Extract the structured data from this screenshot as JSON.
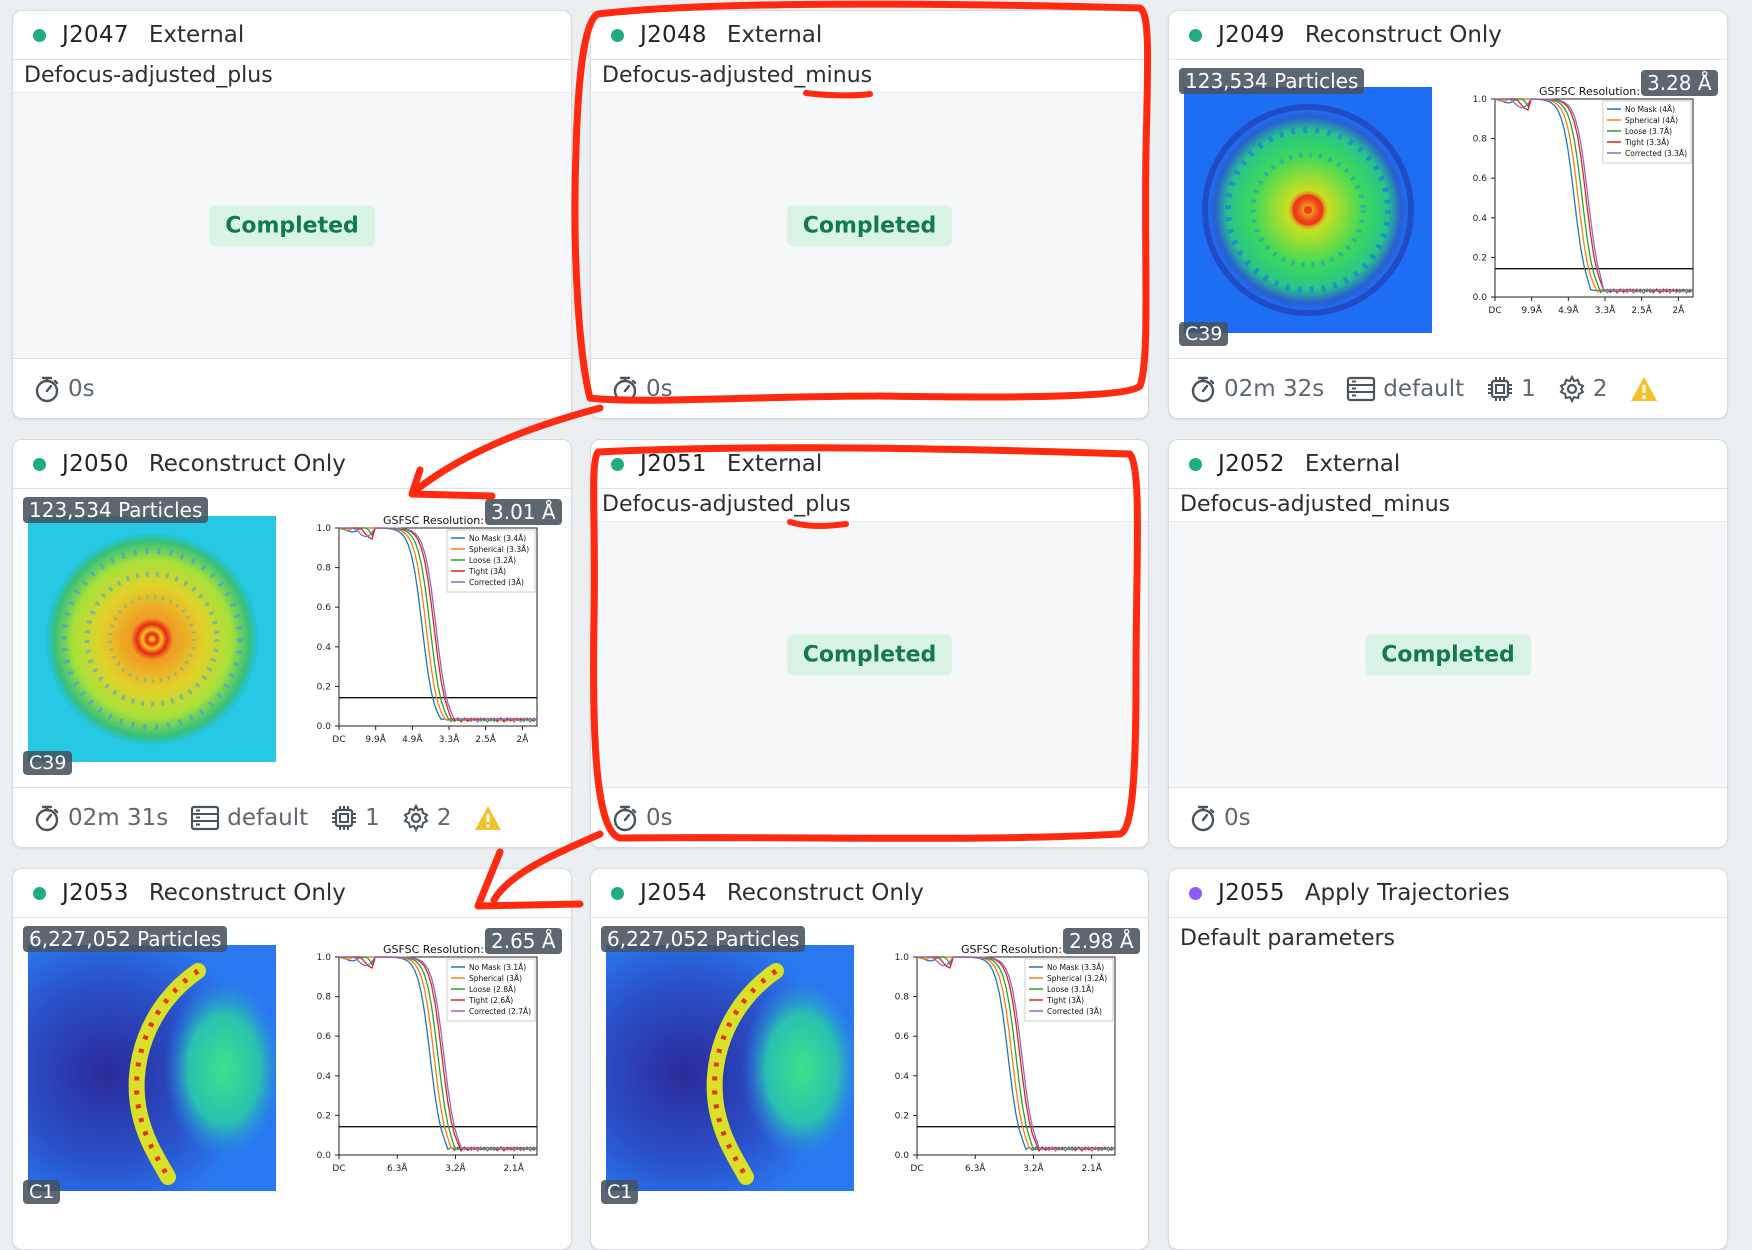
{
  "cards": [
    {
      "id": "J2047",
      "title": "External",
      "subtitle": "Defocus-adjusted_plus",
      "status": "Completed",
      "time": "0s"
    },
    {
      "id": "J2048",
      "title": "External",
      "subtitle": "Defocus-adjusted_minus",
      "status": "Completed",
      "time": "0s"
    },
    {
      "id": "J2049",
      "title": "Reconstruct Only",
      "particles": "123,534 Particles",
      "symmetry": "C39",
      "res_label": "GSFSC Resolution:",
      "res_value": "3.28 Å",
      "time": "02m 32s",
      "lane": "default",
      "gpus": "1",
      "threads": "2",
      "legend": [
        "No Mask (4Å)",
        "Spherical (4Å)",
        "Loose (3.7Å)",
        "Tight (3.3Å)",
        "Corrected (3.3Å)"
      ],
      "xticks": [
        "DC",
        "9.9Å",
        "4.9Å",
        "3.3Å",
        "2.5Å",
        "2Å"
      ]
    },
    {
      "id": "J2050",
      "title": "Reconstruct Only",
      "particles": "123,534 Particles",
      "symmetry": "C39",
      "res_label": "GSFSC Resolution:",
      "res_value": "3.01 Å",
      "time": "02m 31s",
      "lane": "default",
      "gpus": "1",
      "threads": "2",
      "legend": [
        "No Mask (3.4Å)",
        "Spherical (3.3Å)",
        "Loose (3.2Å)",
        "Tight (3Å)",
        "Corrected (3Å)"
      ],
      "xticks": [
        "DC",
        "9.9Å",
        "4.9Å",
        "3.3Å",
        "2.5Å",
        "2Å"
      ]
    },
    {
      "id": "J2051",
      "title": "External",
      "subtitle": "Defocus-adjusted_plus",
      "status": "Completed",
      "time": "0s"
    },
    {
      "id": "J2052",
      "title": "External",
      "subtitle": "Defocus-adjusted_minus",
      "status": "Completed",
      "time": "0s"
    },
    {
      "id": "J2053",
      "title": "Reconstruct Only",
      "particles": "6,227,052 Particles",
      "symmetry": "C1",
      "res_label": "GSFSC Resolution:",
      "res_value": "2.65 Å",
      "legend": [
        "No Mask (3.1Å)",
        "Spherical (3Å)",
        "Loose (2.8Å)",
        "Tight (2.6Å)",
        "Corrected (2.7Å)"
      ],
      "xticks": [
        "DC",
        "6.3Å",
        "3.2Å",
        "2.1Å"
      ]
    },
    {
      "id": "J2054",
      "title": "Reconstruct Only",
      "particles": "6,227,052 Particles",
      "symmetry": "C1",
      "res_label": "GSFSC Resolution:",
      "res_value": "2.98 Å",
      "legend": [
        "No Mask (3.3Å)",
        "Spherical (3.2Å)",
        "Loose (3.1Å)",
        "Tight (3Å)",
        "Corrected (3Å)"
      ],
      "xticks": [
        "DC",
        "6.3Å",
        "3.2Å",
        "2.1Å"
      ]
    },
    {
      "id": "J2055",
      "title": "Apply Trajectories",
      "subtitle": "Default parameters"
    }
  ],
  "yticks": [
    "1.0",
    "0.8",
    "0.6",
    "0.4",
    "0.2",
    "0.0"
  ],
  "colors": {
    "accent_green": "#1fae7a",
    "badge_bg": "#d9f4e6",
    "annotation_red": "#ff2a10"
  }
}
